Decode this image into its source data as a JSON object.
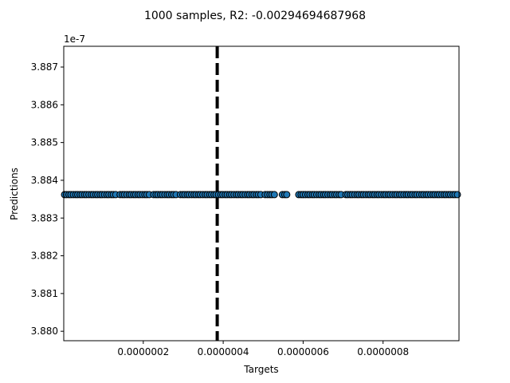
{
  "chart_data": {
    "type": "scatter",
    "title": "1000 samples, R2: -0.00294694687968",
    "xlabel": "Targets",
    "ylabel": "Predictions",
    "y_offset_label": "1e-7",
    "xlim": [
      1e-09,
      9.9e-07
    ],
    "ylim": [
      3.87975,
      3.88755
    ],
    "x_ticks": [
      2e-07,
      4e-07,
      6e-07,
      8e-07
    ],
    "x_tick_labels": [
      "0.0000002",
      "0.0000004",
      "0.0000006",
      "0.0000008"
    ],
    "y_ticks": [
      3.88,
      3.881,
      3.882,
      3.883,
      3.884,
      3.885,
      3.886,
      3.887
    ],
    "y_tick_labels": [
      "3.880",
      "3.881",
      "3.882",
      "3.883",
      "3.884",
      "3.885",
      "3.886",
      "3.887"
    ],
    "prediction_value": 3.88362,
    "reference_line_x": 3.85e-07,
    "colors": {
      "point_fill": "#1f77b4",
      "point_edge": "#000000",
      "reference_line": "#000000"
    },
    "x_points": [
      3e-09,
      8e-09,
      1.4e-08,
      1.9e-08,
      2.5e-08,
      3.1e-08,
      3.6e-08,
      4.2e-08,
      4.7e-08,
      5.3e-08,
      5.8e-08,
      6.4e-08,
      7e-08,
      7.5e-08,
      8.1e-08,
      8.6e-08,
      9.2e-08,
      9.7e-08,
      1.03e-07,
      1.09e-07,
      1.14e-07,
      1.2e-07,
      1.25e-07,
      1.31e-07,
      1.42e-07,
      1.48e-07,
      1.53e-07,
      1.59e-07,
      1.65e-07,
      1.7e-07,
      1.76e-07,
      1.81e-07,
      1.87e-07,
      1.92e-07,
      1.98e-07,
      2.04e-07,
      2.09e-07,
      2.15e-07,
      2.26e-07,
      2.32e-07,
      2.37e-07,
      2.43e-07,
      2.48e-07,
      2.54e-07,
      2.6e-07,
      2.65e-07,
      2.71e-07,
      2.76e-07,
      2.82e-07,
      2.93e-07,
      2.99e-07,
      3.04e-07,
      3.1e-07,
      3.15e-07,
      3.21e-07,
      3.27e-07,
      3.32e-07,
      3.38e-07,
      3.43e-07,
      3.49e-07,
      3.55e-07,
      3.6e-07,
      3.66e-07,
      3.71e-07,
      3.77e-07,
      3.82e-07,
      3.88e-07,
      3.94e-07,
      3.99e-07,
      4.05e-07,
      4.1e-07,
      4.16e-07,
      4.21e-07,
      4.27e-07,
      4.33e-07,
      4.38e-07,
      4.44e-07,
      4.49e-07,
      4.55e-07,
      4.61e-07,
      4.66e-07,
      4.72e-07,
      4.77e-07,
      4.83e-07,
      4.88e-07,
      4.94e-07,
      5.05e-07,
      5.11e-07,
      5.17e-07,
      5.22e-07,
      5.28e-07,
      5.48e-07,
      5.54e-07,
      5.59e-07,
      5.89e-07,
      5.95e-07,
      6e-07,
      6.06e-07,
      6.12e-07,
      6.17e-07,
      6.23e-07,
      6.28e-07,
      6.34e-07,
      6.4e-07,
      6.45e-07,
      6.51e-07,
      6.56e-07,
      6.62e-07,
      6.68e-07,
      6.73e-07,
      6.79e-07,
      6.84e-07,
      6.9e-07,
      6.95e-07,
      7.07e-07,
      7.12e-07,
      7.18e-07,
      7.23e-07,
      7.29e-07,
      7.35e-07,
      7.4e-07,
      7.46e-07,
      7.51e-07,
      7.57e-07,
      7.63e-07,
      7.68e-07,
      7.74e-07,
      7.79e-07,
      7.85e-07,
      7.9e-07,
      7.96e-07,
      8.02e-07,
      8.07e-07,
      8.13e-07,
      8.18e-07,
      8.24e-07,
      8.3e-07,
      8.35e-07,
      8.41e-07,
      8.46e-07,
      8.52e-07,
      8.58e-07,
      8.63e-07,
      8.69e-07,
      8.74e-07,
      8.8e-07,
      8.85e-07,
      8.91e-07,
      8.97e-07,
      9.02e-07,
      9.08e-07,
      9.13e-07,
      9.19e-07,
      9.25e-07,
      9.3e-07,
      9.36e-07,
      9.41e-07,
      9.47e-07,
      9.53e-07,
      9.58e-07,
      9.64e-07,
      9.69e-07,
      9.75e-07,
      9.8e-07,
      9.86e-07
    ]
  }
}
